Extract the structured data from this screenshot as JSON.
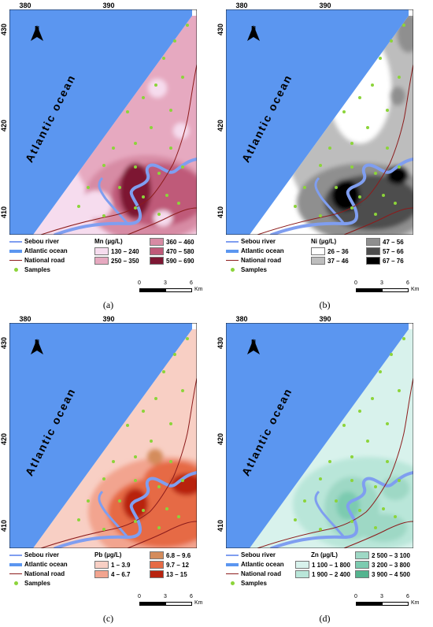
{
  "common": {
    "x_ticks": [
      "380",
      "390"
    ],
    "y_ticks": [
      "430",
      "420",
      "410"
    ],
    "ocean_label": "Atlantic ocean",
    "north_label": "N",
    "legend_static": {
      "river": "Sebou river",
      "ocean": "Atlantic ocean",
      "road": "National road",
      "samples": "Samples"
    },
    "scale": {
      "labels": [
        "0",
        "3",
        "6"
      ],
      "unit": "Km"
    },
    "colors": {
      "ocean": "#5b96f0",
      "river": "#7f9ef0",
      "road": "#8c1c1c",
      "sample": "#8cd43a"
    }
  },
  "panels": [
    {
      "id": "a",
      "caption": "(a)",
      "legend_title": "Mn (µg/L)",
      "classes": [
        {
          "label": "130 – 240",
          "color": "#f6dcee"
        },
        {
          "label": "250 – 350",
          "color": "#e6a9c0"
        },
        {
          "label": "360 – 460",
          "color": "#d78ba4"
        },
        {
          "label": "470 – 580",
          "color": "#bf5a79"
        },
        {
          "label": "590 – 690",
          "color": "#7d1733"
        }
      ]
    },
    {
      "id": "b",
      "caption": "(b)",
      "legend_title": "Ni (µg/L)",
      "classes": [
        {
          "label": "26 – 36",
          "color": "#ffffff"
        },
        {
          "label": "37 – 46",
          "color": "#bdbdbd"
        },
        {
          "label": "47 – 56",
          "color": "#8f8f8f"
        },
        {
          "label": "57 – 66",
          "color": "#4d4d4d"
        },
        {
          "label": "67 – 76",
          "color": "#000000"
        }
      ]
    },
    {
      "id": "c",
      "caption": "(c)",
      "legend_title": "Pb (µg/L)",
      "classes": [
        {
          "label": "1 – 3.9",
          "color": "#f8cfc4"
        },
        {
          "label": "4 – 6.7",
          "color": "#f2a48f"
        },
        {
          "label": "6.8 – 9.6",
          "color": "#d48c5c"
        },
        {
          "label": "9.7 – 12",
          "color": "#e66a45"
        },
        {
          "label": "13 – 15",
          "color": "#b82410"
        }
      ]
    },
    {
      "id": "d",
      "caption": "(d)",
      "legend_title": "Zn (µg/L)",
      "classes": [
        {
          "label": "1 100 – 1 800",
          "color": "#d8f2ec"
        },
        {
          "label": "1 900 – 2 400",
          "color": "#b9e6d9"
        },
        {
          "label": "2 500 – 3 100",
          "color": "#9ed8c5"
        },
        {
          "label": "3 200 – 3 800",
          "color": "#7ccbb0"
        },
        {
          "label": "3 900 – 4 500",
          "color": "#54b48f"
        }
      ]
    }
  ]
}
